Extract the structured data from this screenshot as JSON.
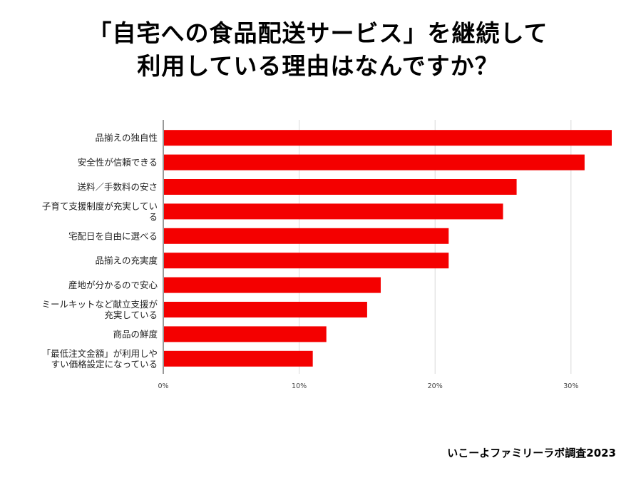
{
  "title_line1": "「自宅への食品配送サービス」を継続して",
  "title_line2": "利用している理由はなんですか？",
  "credit": "いこーよファミリーラボ調査2023",
  "colors": {
    "bar": "#f40000",
    "grid": "#d9d9d9",
    "axis": "#333333"
  },
  "chart_data": {
    "type": "bar",
    "orientation": "horizontal",
    "categories": [
      [
        "品揃えの独自性"
      ],
      [
        "安全性が信頼できる"
      ],
      [
        "送料／手数料の安さ"
      ],
      [
        "子育て支援制度が充実してい",
        "る"
      ],
      [
        "宅配日を自由に選べる"
      ],
      [
        "品揃えの充実度"
      ],
      [
        "産地が分かるので安心"
      ],
      [
        "ミールキットなど献立支援が",
        "充実している"
      ],
      [
        "商品の鮮度"
      ],
      [
        "「最低注文金額」が利用しや",
        "すい価格設定になっている"
      ]
    ],
    "values": [
      33,
      31,
      26,
      25,
      21,
      21,
      16,
      15,
      12,
      11
    ],
    "xlim": [
      0,
      33
    ],
    "ticks": [
      0,
      10,
      20,
      30
    ],
    "tick_labels": [
      "0%",
      "10%",
      "20%",
      "30%"
    ],
    "grid": true,
    "xlabel": "",
    "ylabel": ""
  }
}
